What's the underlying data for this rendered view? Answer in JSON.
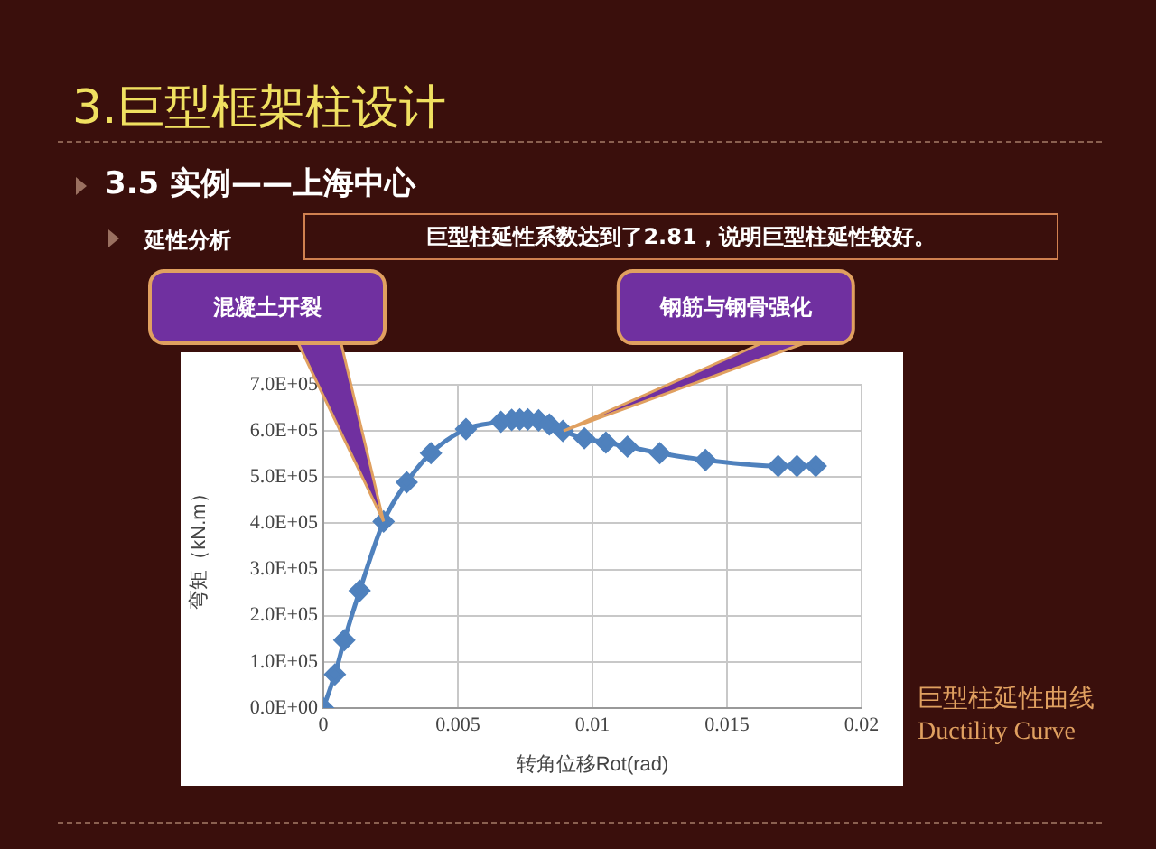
{
  "chart_data": {
    "type": "line",
    "title": "3.巨型框架柱设计",
    "subtitle": "3.5 实例——上海中心",
    "xlabel": "转角位移Rot(rad)",
    "ylabel": "弯矩（kN.m）",
    "x": [
      0,
      0.00043,
      0.00078,
      0.00135,
      0.00224,
      0.0031,
      0.004,
      0.0053,
      0.0066,
      0.007,
      0.0073,
      0.0076,
      0.008,
      0.0084,
      0.0089,
      0.0097,
      0.0105,
      0.0113,
      0.0125,
      0.0142,
      0.0169,
      0.0176,
      0.0183
    ],
    "series": [
      {
        "color": "#4f81bd",
        "values": [
          0,
          73000,
          147000,
          254000,
          404000,
          489000,
          552000,
          604000,
          620000,
          624000,
          625000,
          625000,
          623000,
          614000,
          600000,
          584000,
          575000,
          566000,
          552000,
          537000,
          524000,
          524000,
          524000
        ]
      }
    ],
    "xlim": [
      0,
      0.02
    ],
    "xticks": [
      0,
      0.005,
      0.01,
      0.015,
      0.02
    ],
    "ylim": [
      0,
      700000
    ],
    "yticks": [
      {
        "value": 0,
        "label": "0.0E+00"
      },
      {
        "value": 100000,
        "label": "1.0E+05"
      },
      {
        "value": 200000,
        "label": "2.0E+05"
      },
      {
        "value": 300000,
        "label": "3.0E+05"
      },
      {
        "value": 400000,
        "label": "4.0E+05"
      },
      {
        "value": 500000,
        "label": "5.0E+05"
      },
      {
        "value": 600000,
        "label": "6.0E+05"
      },
      {
        "value": 700000,
        "label": "7.0E+05"
      }
    ],
    "grid": true,
    "legend": false,
    "marker": "diamond",
    "line_style": "solid",
    "annotations": [
      "延性分析",
      "巨型柱延性系数达到了2.81，说明巨型柱延性较好。",
      "巨型柱延性曲线",
      "Ductility Curve",
      {
        "text": "混凝土开裂",
        "x": 0.00224,
        "y": 404000
      },
      {
        "text": "钢筋与钢骨强化",
        "x": 0.0089,
        "y": 600000
      }
    ]
  }
}
